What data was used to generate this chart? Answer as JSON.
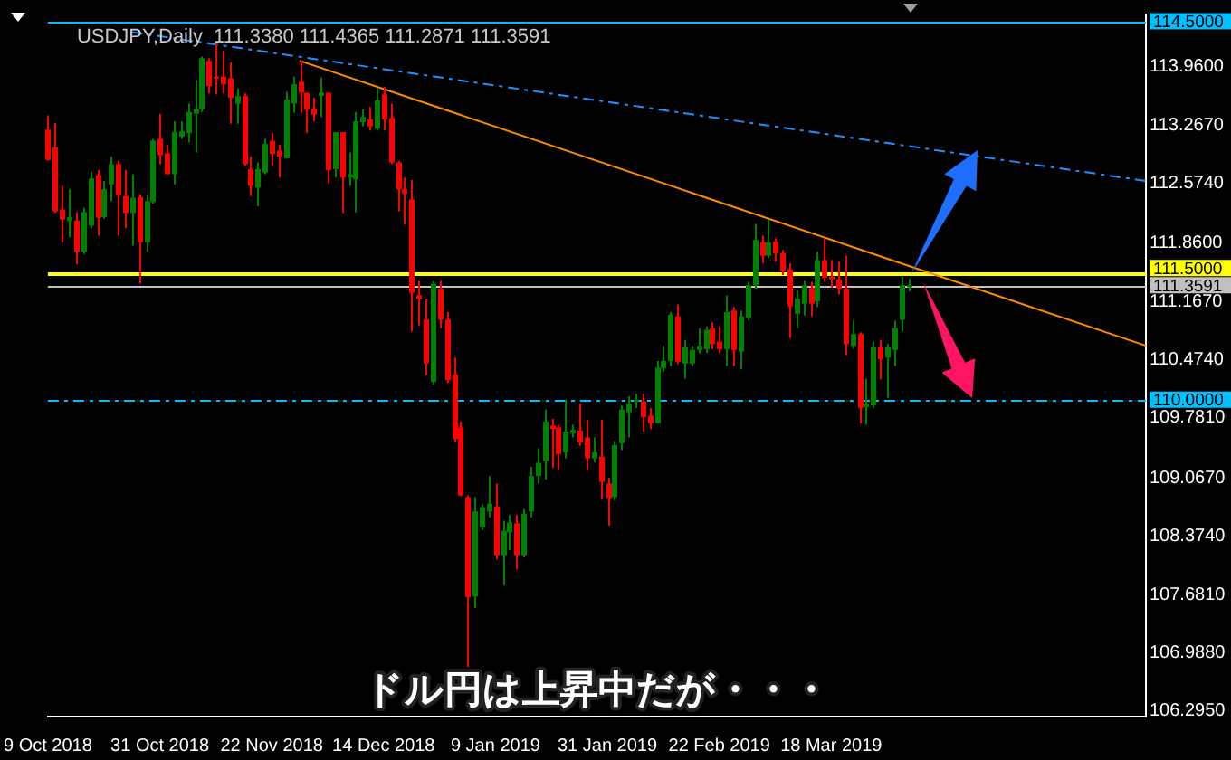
{
  "chart_data": {
    "type": "candlestick",
    "title": "USDJPY,Daily  111.3380 111.4365 111.2871 111.3591",
    "annotations": [
      "ドル円は上昇中だが・・・"
    ],
    "categories": [
      "9 Oct 2018",
      null,
      null,
      null,
      null,
      null,
      null,
      null,
      null,
      null,
      null,
      null,
      null,
      null,
      null,
      null,
      "31 Oct 2018",
      null,
      null,
      null,
      null,
      null,
      null,
      null,
      null,
      null,
      null,
      null,
      null,
      null,
      null,
      null,
      "22 Nov 2018",
      null,
      null,
      null,
      null,
      null,
      null,
      null,
      null,
      null,
      null,
      null,
      null,
      null,
      null,
      null,
      "14 Dec 2018",
      null,
      null,
      null,
      null,
      null,
      null,
      null,
      null,
      null,
      null,
      null,
      null,
      null,
      null,
      null,
      "9 Jan 2019",
      null,
      null,
      null,
      null,
      null,
      null,
      null,
      null,
      null,
      null,
      null,
      null,
      null,
      null,
      null,
      "31 Jan 2019",
      null,
      null,
      null,
      null,
      null,
      null,
      null,
      null,
      null,
      null,
      null,
      null,
      null,
      null,
      null,
      "22 Feb 2019",
      null,
      null,
      null,
      null,
      null,
      null,
      null,
      null,
      null,
      null,
      null,
      null,
      null,
      null,
      null,
      "18 Mar 2019",
      null,
      null,
      null,
      null,
      null,
      null,
      null,
      null,
      null,
      null,
      null,
      null,
      null,
      null,
      null,
      null,
      null,
      null,
      null,
      null,
      null,
      null,
      null,
      null,
      null,
      null,
      null,
      null,
      null,
      null,
      null,
      null,
      null,
      null,
      null,
      null,
      null,
      null,
      null,
      null,
      null,
      null,
      null,
      null,
      null
    ],
    "ohlc": [
      [
        113.21,
        113.38,
        112.84,
        112.85
      ],
      [
        113.0,
        113.29,
        112.22,
        112.24
      ],
      [
        112.26,
        112.54,
        111.87,
        112.14
      ],
      [
        112.12,
        112.5,
        111.93,
        112.17
      ],
      [
        112.13,
        112.23,
        111.61,
        111.76
      ],
      [
        111.76,
        112.28,
        111.73,
        112.23
      ],
      [
        112.07,
        112.71,
        112.04,
        112.63
      ],
      [
        112.67,
        112.73,
        111.95,
        112.16
      ],
      [
        112.17,
        112.6,
        112.15,
        112.5
      ],
      [
        112.56,
        112.89,
        112.36,
        112.8
      ],
      [
        112.8,
        112.84,
        111.95,
        112.43
      ],
      [
        112.42,
        112.73,
        112.04,
        112.22
      ],
      [
        112.22,
        112.68,
        111.83,
        112.4
      ],
      [
        112.41,
        112.44,
        111.38,
        111.87
      ],
      [
        111.87,
        112.43,
        111.76,
        112.36
      ],
      [
        112.35,
        113.1,
        112.33,
        113.08
      ],
      [
        113.1,
        113.4,
        112.8,
        112.91
      ],
      [
        112.93,
        113.03,
        112.68,
        112.68
      ],
      [
        112.68,
        113.31,
        112.56,
        113.18
      ],
      [
        113.13,
        113.31,
        113.1,
        113.19
      ],
      [
        113.17,
        113.52,
        113.06,
        113.42
      ],
      [
        113.4,
        113.8,
        112.94,
        113.45
      ],
      [
        113.45,
        114.08,
        113.42,
        114.06
      ],
      [
        114.03,
        114.06,
        113.64,
        113.73
      ],
      [
        113.84,
        114.23,
        113.63,
        113.82
      ],
      [
        113.84,
        114.15,
        113.64,
        113.75
      ],
      [
        113.82,
        114.01,
        113.28,
        113.59
      ],
      [
        113.52,
        113.7,
        113.28,
        113.61
      ],
      [
        113.61,
        113.64,
        112.78,
        112.8
      ],
      [
        112.74,
        112.89,
        112.42,
        112.54
      ],
      [
        112.52,
        112.82,
        112.3,
        112.74
      ],
      [
        112.7,
        113.1,
        112.68,
        113.04
      ],
      [
        113.08,
        113.17,
        112.78,
        112.92
      ],
      [
        112.96,
        113.03,
        112.64,
        112.89
      ],
      [
        112.87,
        113.66,
        112.87,
        113.57
      ],
      [
        113.52,
        113.84,
        113.41,
        113.75
      ],
      [
        113.78,
        114.03,
        113.41,
        113.65
      ],
      [
        113.65,
        113.65,
        113.17,
        113.45
      ],
      [
        113.46,
        113.59,
        113.31,
        113.39
      ],
      [
        113.61,
        113.83,
        113.36,
        113.65
      ],
      [
        113.65,
        113.65,
        112.57,
        112.73
      ],
      [
        112.74,
        113.18,
        112.64,
        113.18
      ],
      [
        113.18,
        113.18,
        112.22,
        112.64
      ],
      [
        112.64,
        112.94,
        112.54,
        112.68
      ],
      [
        112.62,
        113.42,
        112.23,
        113.31
      ],
      [
        113.3,
        113.45,
        113.25,
        113.36
      ],
      [
        113.33,
        113.48,
        113.2,
        113.25
      ],
      [
        113.22,
        113.7,
        113.2,
        113.56
      ],
      [
        113.63,
        113.72,
        113.2,
        113.33
      ],
      [
        113.35,
        113.52,
        112.8,
        112.82
      ],
      [
        112.82,
        112.84,
        112.24,
        112.5
      ],
      [
        112.5,
        112.64,
        112.08,
        112.45
      ],
      [
        112.38,
        112.61,
        110.81,
        111.27
      ],
      [
        111.24,
        111.41,
        110.88,
        111.2
      ],
      [
        110.95,
        111.2,
        110.29,
        110.43
      ],
      [
        110.21,
        111.41,
        110.18,
        111.38
      ],
      [
        111.32,
        111.41,
        110.85,
        110.95
      ],
      [
        110.95,
        111.04,
        110.2,
        110.23
      ],
      [
        110.3,
        110.5,
        109.5,
        109.53
      ],
      [
        109.67,
        109.74,
        108.85,
        108.86
      ],
      [
        108.84,
        108.86,
        106.82,
        107.65
      ],
      [
        107.66,
        108.84,
        107.52,
        108.67
      ],
      [
        108.48,
        108.76,
        108.45,
        108.72
      ],
      [
        108.67,
        109.09,
        108.6,
        108.76
      ],
      [
        108.73,
        109.0,
        108.1,
        108.15
      ],
      [
        108.15,
        108.56,
        107.79,
        108.44
      ],
      [
        108.42,
        108.63,
        108.21,
        108.54
      ],
      [
        108.53,
        108.63,
        107.98,
        108.15
      ],
      [
        108.15,
        108.7,
        108.12,
        108.64
      ],
      [
        108.67,
        109.2,
        108.6,
        109.09
      ],
      [
        109.09,
        109.42,
        109.0,
        109.25
      ],
      [
        109.27,
        109.88,
        109.05,
        109.74
      ],
      [
        109.69,
        109.77,
        109.19,
        109.65
      ],
      [
        109.67,
        109.7,
        109.16,
        109.35
      ],
      [
        109.37,
        110.0,
        109.3,
        109.62
      ],
      [
        109.6,
        109.7,
        109.55,
        109.64
      ],
      [
        109.63,
        109.95,
        109.45,
        109.49
      ],
      [
        109.55,
        109.76,
        109.16,
        109.3
      ],
      [
        109.3,
        109.55,
        109.25,
        109.37
      ],
      [
        109.32,
        109.76,
        108.81,
        109.02
      ],
      [
        109.0,
        109.07,
        108.5,
        108.83
      ],
      [
        108.84,
        109.51,
        108.8,
        109.46
      ],
      [
        109.48,
        109.93,
        109.4,
        109.88
      ],
      [
        109.85,
        110.04,
        109.55,
        109.95
      ],
      [
        109.97,
        110.07,
        109.9,
        110.0
      ],
      [
        109.98,
        110.07,
        109.62,
        109.79
      ],
      [
        109.81,
        109.9,
        109.65,
        109.72
      ],
      [
        109.72,
        110.46,
        109.72,
        110.38
      ],
      [
        110.37,
        110.64,
        110.33,
        110.46
      ],
      [
        110.46,
        111.04,
        110.4,
        111.01
      ],
      [
        110.99,
        111.13,
        110.42,
        110.45
      ],
      [
        110.43,
        110.71,
        110.25,
        110.62
      ],
      [
        110.43,
        110.64,
        110.4,
        110.59
      ],
      [
        110.59,
        110.85,
        110.55,
        110.64
      ],
      [
        110.6,
        110.87,
        110.55,
        110.83
      ],
      [
        110.85,
        110.92,
        110.6,
        110.66
      ],
      [
        110.69,
        110.87,
        110.55,
        110.6
      ],
      [
        110.6,
        111.24,
        110.4,
        111.04
      ],
      [
        111.06,
        111.1,
        110.4,
        110.59
      ],
      [
        110.57,
        111.06,
        110.36,
        110.99
      ],
      [
        110.97,
        111.4,
        110.94,
        111.36
      ],
      [
        111.36,
        112.09,
        111.32,
        111.9
      ],
      [
        111.87,
        111.95,
        111.62,
        111.71
      ],
      [
        111.71,
        112.14,
        111.68,
        111.87
      ],
      [
        111.88,
        111.92,
        111.64,
        111.74
      ],
      [
        111.74,
        111.78,
        111.48,
        111.53
      ],
      [
        111.55,
        111.62,
        110.73,
        111.11
      ],
      [
        111.02,
        111.3,
        110.85,
        111.2
      ],
      [
        111.14,
        111.41,
        111.0,
        111.36
      ],
      [
        111.33,
        111.4,
        110.99,
        111.14
      ],
      [
        111.17,
        111.76,
        111.1,
        111.66
      ],
      [
        111.66,
        111.92,
        111.4,
        111.45
      ],
      [
        111.46,
        111.66,
        111.33,
        111.43
      ],
      [
        111.43,
        111.64,
        111.25,
        111.32
      ],
      [
        111.32,
        111.71,
        110.53,
        110.66
      ],
      [
        110.64,
        110.94,
        110.6,
        110.78
      ],
      [
        110.78,
        110.8,
        109.72,
        109.9
      ],
      [
        109.91,
        110.25,
        109.7,
        109.95
      ],
      [
        109.93,
        110.69,
        109.9,
        110.62
      ],
      [
        110.62,
        110.71,
        110.24,
        110.48
      ],
      [
        110.5,
        110.66,
        110.02,
        110.62
      ],
      [
        110.59,
        110.94,
        110.4,
        110.85
      ],
      [
        110.95,
        111.46,
        110.81,
        111.36
      ],
      [
        111.338,
        111.4365,
        111.2871,
        111.3591
      ],
      null,
      null,
      null,
      null,
      null,
      null,
      null,
      null,
      null,
      null,
      null,
      null,
      null,
      null,
      null,
      null,
      null,
      null,
      null,
      null,
      null,
      null,
      null,
      null,
      null,
      null,
      null,
      null,
      null,
      null,
      null,
      null,
      null,
      null
    ],
    "series": [
      {
        "type": "line",
        "color": "#1e90ff",
        "line_style": "dashed",
        "values": [
          null,
          null,
          null,
          null,
          null,
          null,
          null,
          null,
          null,
          null,
          null,
          null,
          114.37,
          null,
          null,
          null,
          null,
          null,
          null,
          null,
          null,
          null,
          null,
          null,
          null,
          null,
          null,
          null,
          null,
          null,
          null,
          null,
          null,
          null,
          null,
          null,
          null,
          null,
          null,
          null,
          null,
          null,
          null,
          null,
          null,
          null,
          null,
          null,
          null,
          null,
          null,
          null,
          null,
          null,
          null,
          null,
          null,
          null,
          null,
          null,
          null,
          null,
          null,
          null,
          null,
          null,
          null,
          null,
          null,
          null,
          null,
          null,
          null,
          null,
          null,
          null,
          null,
          null,
          null,
          null,
          null,
          null,
          null,
          null,
          null,
          null,
          null,
          null,
          null,
          null,
          null,
          null,
          null,
          null,
          null,
          null,
          null,
          null,
          null,
          null,
          null,
          null,
          null,
          null,
          null,
          null,
          null,
          null,
          null,
          null,
          null,
          null,
          null,
          null,
          null,
          null,
          null,
          null,
          null,
          null,
          null,
          null,
          null,
          null,
          null,
          null,
          null,
          null,
          null,
          null,
          null,
          null,
          null,
          null,
          null,
          null,
          null,
          null,
          null,
          null,
          null,
          null,
          null,
          null,
          null,
          null,
          null,
          null,
          null,
          null,
          null,
          null,
          null,
          null,
          null,
          null,
          null,
          112.6
        ]
      },
      {
        "type": "line",
        "color": "#ff8c00",
        "line_style": "solid",
        "values": [
          null,
          null,
          null,
          null,
          null,
          null,
          null,
          null,
          null,
          null,
          null,
          null,
          null,
          null,
          null,
          null,
          null,
          null,
          null,
          null,
          null,
          null,
          null,
          null,
          null,
          null,
          null,
          null,
          null,
          null,
          null,
          null,
          null,
          null,
          null,
          null,
          114.03,
          null,
          null,
          null,
          null,
          null,
          null,
          null,
          null,
          null,
          null,
          null,
          null,
          null,
          null,
          null,
          null,
          null,
          null,
          null,
          null,
          null,
          null,
          null,
          null,
          null,
          null,
          null,
          null,
          null,
          null,
          null,
          null,
          null,
          null,
          null,
          null,
          null,
          null,
          null,
          null,
          null,
          null,
          null,
          null,
          null,
          null,
          null,
          null,
          null,
          null,
          null,
          null,
          null,
          null,
          null,
          null,
          null,
          null,
          null,
          null,
          null,
          null,
          null,
          null,
          null,
          null,
          null,
          null,
          null,
          null,
          null,
          null,
          null,
          null,
          null,
          null,
          null,
          null,
          null,
          null,
          null,
          null,
          null,
          null,
          null,
          null,
          null,
          null,
          null,
          null,
          null,
          null,
          null,
          null,
          null,
          null,
          null,
          null,
          null,
          null,
          null,
          null,
          null,
          null,
          null,
          null,
          null,
          null,
          null,
          null,
          null,
          null,
          null,
          null,
          null,
          null,
          null,
          null,
          null,
          null,
          110.64
        ]
      }
    ],
    "ylim": [
      106.23,
      114.58
    ],
    "yticks": [
      {
        "value": 106.295,
        "label": "106.2950"
      },
      {
        "value": 106.988,
        "label": "106.9880"
      },
      {
        "value": 107.681,
        "label": "107.6810"
      },
      {
        "value": 108.374,
        "label": "108.3740"
      },
      {
        "value": 109.067,
        "label": "109.0670"
      },
      {
        "value": 109.781,
        "label": "109.7810"
      },
      {
        "value": 110.474,
        "label": "110.4740"
      },
      {
        "value": 111.167,
        "label": "111.1670"
      },
      {
        "value": 111.86,
        "label": "111.8600"
      },
      {
        "value": 112.574,
        "label": "112.5740"
      },
      {
        "value": 113.267,
        "label": "113.2670"
      },
      {
        "value": 113.96,
        "label": "113.9600"
      }
    ],
    "ref_lines": [
      {
        "axis": "y",
        "value": 114.5,
        "label": "114.5000",
        "color": "#00bfff",
        "line_style": "solid"
      },
      {
        "axis": "y",
        "value": 111.5,
        "label": "111.5000",
        "color": "#ffff00",
        "line_style": "solid"
      },
      {
        "axis": "y",
        "value": 111.3591,
        "label": "111.3591",
        "color": "#c0c0c0",
        "line_style": "solid"
      },
      {
        "axis": "y",
        "value": 110.0,
        "label": "110.0000",
        "color": "#00bfff",
        "line_style": "dashed"
      }
    ],
    "grid": false,
    "legend": false,
    "marker": "none"
  }
}
